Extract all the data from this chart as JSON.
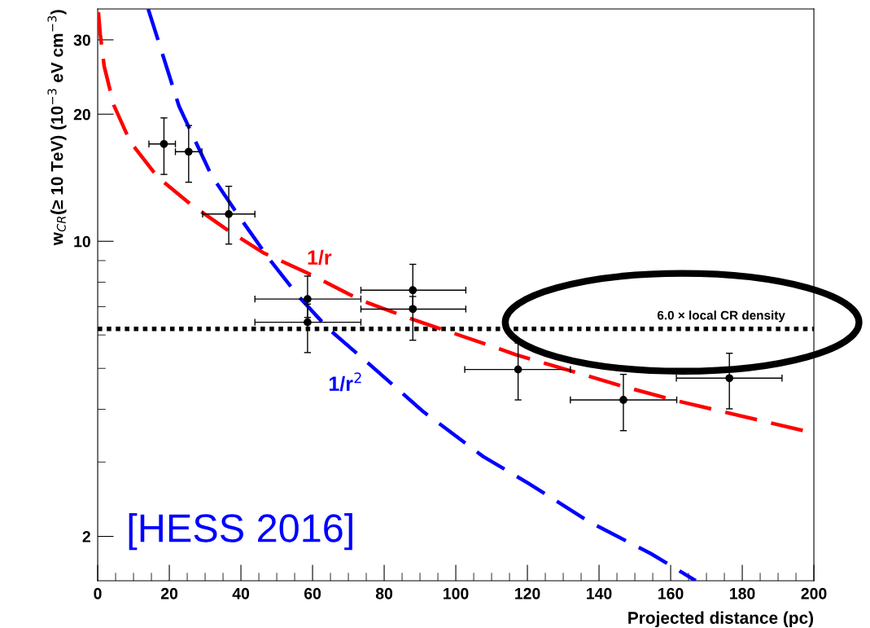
{
  "chart_data": {
    "type": "scatter",
    "xlabel": "Projected distance (pc)",
    "ylabel": "w$_{CR}$(≥ 10 TeV) (10$^{−3}$ eV cm$^{−3}$)",
    "log": "y",
    "grid": false,
    "xlim": [
      0,
      200
    ],
    "ylim": [
      1.57,
      35.5
    ],
    "xticks": [
      0,
      {
        "value": 5,
        "label": null
      },
      {
        "value": 10,
        "label": null
      },
      {
        "value": 15,
        "label": null
      },
      20,
      {
        "value": 25,
        "label": null
      },
      {
        "value": 30,
        "label": null
      },
      {
        "value": 35,
        "label": null
      },
      40,
      {
        "value": 45,
        "label": null
      },
      {
        "value": 50,
        "label": null
      },
      {
        "value": 55,
        "label": null
      },
      60,
      {
        "value": 65,
        "label": null
      },
      {
        "value": 70,
        "label": null
      },
      {
        "value": 75,
        "label": null
      },
      80,
      {
        "value": 85,
        "label": null
      },
      {
        "value": 90,
        "label": null
      },
      {
        "value": 95,
        "label": null
      },
      100,
      {
        "value": 105,
        "label": null
      },
      {
        "value": 110,
        "label": null
      },
      {
        "value": 115,
        "label": null
      },
      120,
      {
        "value": 125,
        "label": null
      },
      {
        "value": 130,
        "label": null
      },
      {
        "value": 135,
        "label": null
      },
      140,
      {
        "value": 145,
        "label": null
      },
      {
        "value": 150,
        "label": null
      },
      {
        "value": 155,
        "label": null
      },
      160,
      {
        "value": 165,
        "label": null
      },
      {
        "value": 170,
        "label": null
      },
      {
        "value": 175,
        "label": null
      },
      180,
      {
        "value": 185,
        "label": null
      },
      {
        "value": 190,
        "label": null
      },
      {
        "value": 195,
        "label": null
      },
      200
    ],
    "yticks": [
      2,
      {
        "value": 3,
        "label": null
      },
      {
        "value": 4,
        "label": null
      },
      {
        "value": 5,
        "label": null
      },
      {
        "value": 6,
        "label": null
      },
      {
        "value": 7,
        "label": null
      },
      {
        "value": 8,
        "label": null
      },
      {
        "value": 9,
        "label": null
      },
      10,
      20,
      30
    ],
    "series": [
      {
        "color": "#000000",
        "marker": "circle",
        "x": [
          18.5,
          25.4,
          36.6,
          58.6,
          58.6,
          88.0,
          88.0,
          117.4,
          146.8,
          176.4
        ],
        "values": [
          17.0,
          16.3,
          11.6,
          7.3,
          6.43,
          7.66,
          6.91,
          4.97,
          4.21,
          4.74
        ],
        "errors": [
          [
            14.4,
            19.6
          ],
          [
            13.8,
            18.8
          ],
          [
            9.85,
            13.5
          ],
          [
            6.6,
            8.27
          ],
          [
            5.45,
            7.1
          ],
          [
            7.0,
            8.82
          ],
          [
            5.83,
            7.4
          ],
          [
            4.21,
            5.74
          ],
          [
            3.56,
            4.84
          ],
          [
            4.01,
            5.43
          ]
        ],
        "xerrors": [
          [
            14.3,
            21.7
          ],
          [
            21.7,
            29.1
          ],
          [
            29.3,
            43.9
          ],
          [
            43.9,
            73.5
          ],
          [
            43.9,
            73.5
          ],
          [
            73.5,
            102.8
          ],
          [
            73.5,
            102.8
          ],
          [
            102.5,
            132.0
          ],
          [
            132.0,
            161.7
          ],
          [
            161.6,
            191.1
          ]
        ]
      },
      {
        "type": "line",
        "color": "#ff0000",
        "line_style": "dashed",
        "marker": "none",
        "x": [
          0.2,
          0.7,
          1.8,
          4.5,
          9.1,
          16.7,
          25.8,
          36.6,
          46.2,
          58.6,
          73.5,
          88.0,
          109.1,
          116.7,
          146.8,
          161.7,
          197.7
        ],
        "values": [
          34.9,
          31,
          26,
          21,
          17.2,
          14.2,
          12.27,
          10.58,
          9.4,
          8.41,
          7.25,
          6.53,
          5.68,
          5.39,
          4.53,
          4.19,
          3.55
        ]
      },
      {
        "type": "line",
        "color": "#0000ff",
        "line_style": "dashed",
        "marker": "none",
        "x": [
          14.1,
          22.7,
          31.8,
          39.4,
          47.7,
          56.1,
          64.4,
          75.8,
          90.9,
          107.7,
          120,
          137.5,
          154.5,
          167
        ],
        "values": [
          35.5,
          20.9,
          14.3,
          11.48,
          9.12,
          7.41,
          6.21,
          5.12,
          3.95,
          3.09,
          2.68,
          2.16,
          1.82,
          1.57
        ]
      }
    ],
    "ref_lines": [
      {
        "axis": "y",
        "value": 6.2,
        "label": "6.0 × local CR density",
        "color": "#000000",
        "line_style": "dotted"
      }
    ],
    "annotations": [
      "1/r",
      "1/r$^{2}$",
      "[HESS 2016]"
    ]
  }
}
